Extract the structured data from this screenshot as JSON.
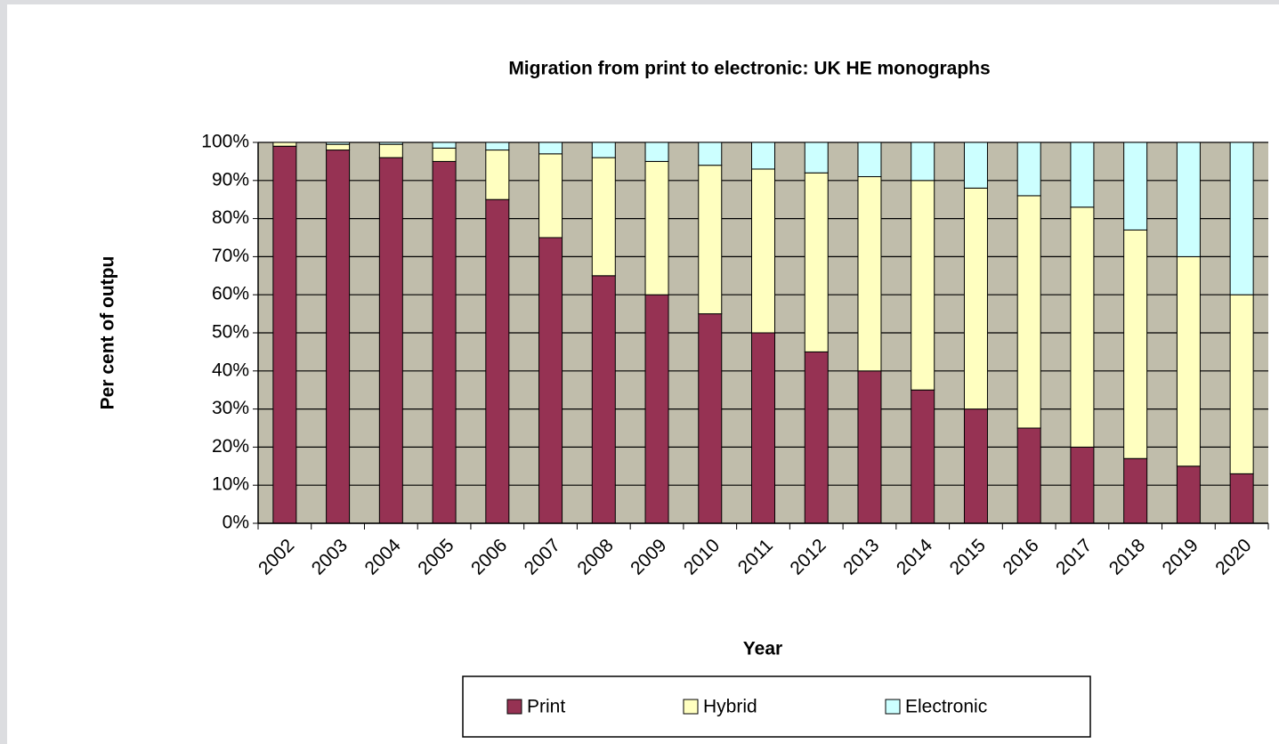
{
  "chart_data": {
    "type": "stacked_bar",
    "title": "Migration from print to electronic: UK HE monographs",
    "xlabel": "Year",
    "ylabel": "Per cent of outpu",
    "categories": [
      "2002",
      "2003",
      "2004",
      "2005",
      "2006",
      "2007",
      "2008",
      "2009",
      "2010",
      "2011",
      "2012",
      "2013",
      "2014",
      "2015",
      "2016",
      "2017",
      "2018",
      "2019",
      "2020"
    ],
    "series": [
      {
        "name": "Print",
        "color": "#963253",
        "values": [
          99,
          98,
          96,
          95,
          85,
          75,
          65,
          60,
          55,
          50,
          45,
          40,
          35,
          30,
          25,
          20,
          17,
          15,
          13
        ]
      },
      {
        "name": "Hybrid",
        "color": "#ffffc0",
        "values": [
          1,
          1.5,
          3.5,
          3.5,
          13,
          22,
          31,
          35,
          39,
          43,
          47,
          51,
          55,
          58,
          61,
          63,
          60,
          55,
          47
        ]
      },
      {
        "name": "Electronic",
        "color": "#ccffff",
        "values": [
          0,
          0.5,
          0.5,
          1.5,
          2,
          3,
          4,
          5,
          6,
          7,
          8,
          9,
          10,
          12,
          14,
          17,
          23,
          30,
          40
        ]
      }
    ],
    "ylim": [
      0,
      100
    ],
    "yticks": [
      {
        "value": 0,
        "label": "0%"
      },
      {
        "value": 10,
        "label": "10%"
      },
      {
        "value": 20,
        "label": "20%"
      },
      {
        "value": 30,
        "label": "30%"
      },
      {
        "value": 40,
        "label": "40%"
      },
      {
        "value": 50,
        "label": "50%"
      },
      {
        "value": 60,
        "label": "60%"
      },
      {
        "value": 70,
        "label": "70%"
      },
      {
        "value": 80,
        "label": "80%"
      },
      {
        "value": 90,
        "label": "90%"
      },
      {
        "value": 100,
        "label": "100%"
      }
    ],
    "grid": true,
    "legend": "bottom"
  }
}
